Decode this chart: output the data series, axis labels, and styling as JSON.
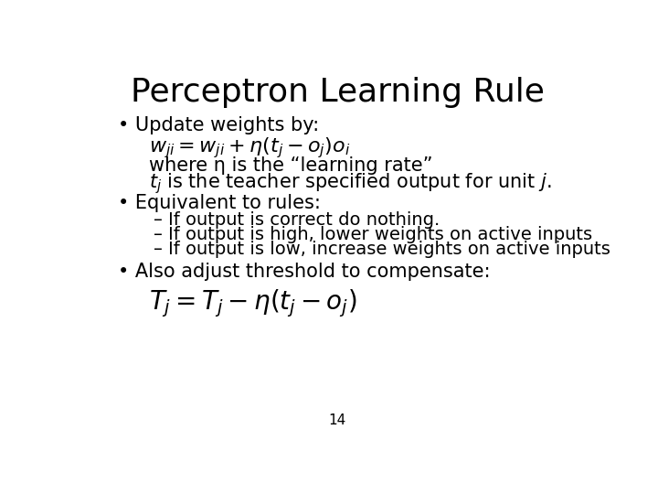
{
  "title": "Perceptron Learning Rule",
  "background_color": "#ffffff",
  "text_color": "#000000",
  "title_fontsize": 26,
  "body_fontsize": 15,
  "math_fontsize": 16,
  "sub_fontsize": 14,
  "small_fontsize": 11,
  "page_number": "14",
  "bullet1": "Update weights by:",
  "formula1": "$w_{ji} = w_{ji} + \\eta(t_j - o_j)o_i$",
  "where_text": "where η is the “learning rate”",
  "tj_text": "$t_j$ is the teacher specified output for unit $j$.",
  "bullet2": "Equivalent to rules:",
  "sub1": "If output is correct do nothing.",
  "sub2": "If output is high, lower weights on active inputs",
  "sub3": "If output is low, increase weights on active inputs",
  "bullet3": "Also adjust threshold to compensate:",
  "formula2": "$T_j = T_j - \\eta(t_j - o_j)$"
}
